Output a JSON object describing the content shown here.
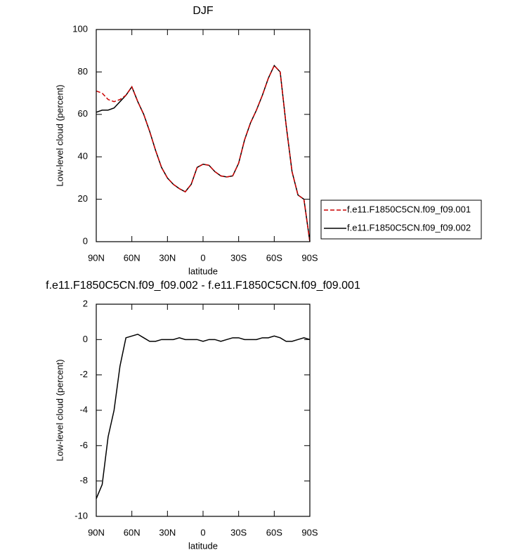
{
  "chart_data": [
    {
      "type": "line",
      "title": "DJF",
      "xlabel": "latitude",
      "ylabel": "Low-level cloud (percent)",
      "x": [
        90,
        85,
        80,
        75,
        70,
        65,
        60,
        55,
        50,
        45,
        40,
        35,
        30,
        25,
        20,
        15,
        10,
        5,
        0,
        -5,
        -10,
        -15,
        -20,
        -25,
        -30,
        -35,
        -40,
        -45,
        -50,
        -55,
        -60,
        -65,
        -70,
        -75,
        -80,
        -85,
        -90
      ],
      "series": [
        {
          "name": "f.e11.F1850C5CN.f09_f09.001",
          "color": "#cc0000",
          "line_style": "dashed",
          "values": [
            71,
            70,
            67,
            66,
            67,
            69,
            73,
            66,
            60,
            52,
            43,
            35,
            30,
            27,
            25,
            23.5,
            27,
            35,
            36.5,
            36,
            33,
            31,
            30.5,
            31,
            37,
            48,
            56,
            62,
            69,
            77,
            83,
            80,
            55,
            33,
            22,
            20,
            0
          ]
        },
        {
          "name": "f.e11.F1850C5CN.f09_f09.002",
          "color": "#000000",
          "line_style": "solid",
          "values": [
            61,
            62,
            62,
            63,
            66,
            69,
            73,
            66,
            60,
            52,
            43,
            35,
            30,
            27,
            25,
            23.5,
            27,
            35,
            36.5,
            36,
            33,
            31,
            30.5,
            31,
            37,
            48,
            56,
            62,
            69,
            77,
            83,
            80,
            55,
            33,
            22,
            20,
            0
          ]
        }
      ],
      "xlim": [
        90,
        -90
      ],
      "xticks": [
        {
          "value": 90,
          "label": "90N"
        },
        {
          "value": 60,
          "label": "60N"
        },
        {
          "value": 30,
          "label": "30N"
        },
        0,
        {
          "value": -30,
          "label": "30S"
        },
        {
          "value": -60,
          "label": "60S"
        },
        {
          "value": -90,
          "label": "90S"
        }
      ],
      "ylim": [
        0,
        100
      ],
      "yticks": [
        0,
        20,
        40,
        60,
        80,
        100
      ],
      "legend": "outside right"
    },
    {
      "type": "line",
      "title": "f.e11.F1850C5CN.f09_f09.002 - f.e11.F1850C5CN.f09_f09.001",
      "xlabel": "latitude",
      "ylabel": "Low-level cloud (percent)",
      "x": [
        90,
        85,
        80,
        75,
        70,
        65,
        60,
        55,
        50,
        45,
        40,
        35,
        30,
        25,
        20,
        15,
        10,
        5,
        0,
        -5,
        -10,
        -15,
        -20,
        -25,
        -30,
        -35,
        -40,
        -45,
        -50,
        -55,
        -60,
        -65,
        -70,
        -75,
        -80,
        -85,
        -90
      ],
      "values": [
        -9,
        -8.2,
        -5.5,
        -4,
        -1.5,
        0.1,
        0.2,
        0.3,
        0.1,
        -0.1,
        -0.1,
        0,
        0,
        0,
        0.1,
        0,
        0,
        0,
        -0.1,
        0,
        0,
        -0.1,
        0,
        0.1,
        0.1,
        0,
        0,
        0,
        0.1,
        0.1,
        0.2,
        0.1,
        -0.1,
        -0.1,
        0,
        0.1,
        0
      ],
      "color": "#000000",
      "xlim": [
        90,
        -90
      ],
      "xticks": [
        {
          "value": 90,
          "label": "90N"
        },
        {
          "value": 60,
          "label": "60N"
        },
        {
          "value": 30,
          "label": "30N"
        },
        0,
        {
          "value": -30,
          "label": "30S"
        },
        {
          "value": -60,
          "label": "60S"
        },
        {
          "value": -90,
          "label": "90S"
        }
      ],
      "ylim": [
        -10,
        2
      ],
      "yticks": [
        -10,
        -8,
        -6,
        -4,
        -2,
        0,
        2
      ]
    }
  ]
}
